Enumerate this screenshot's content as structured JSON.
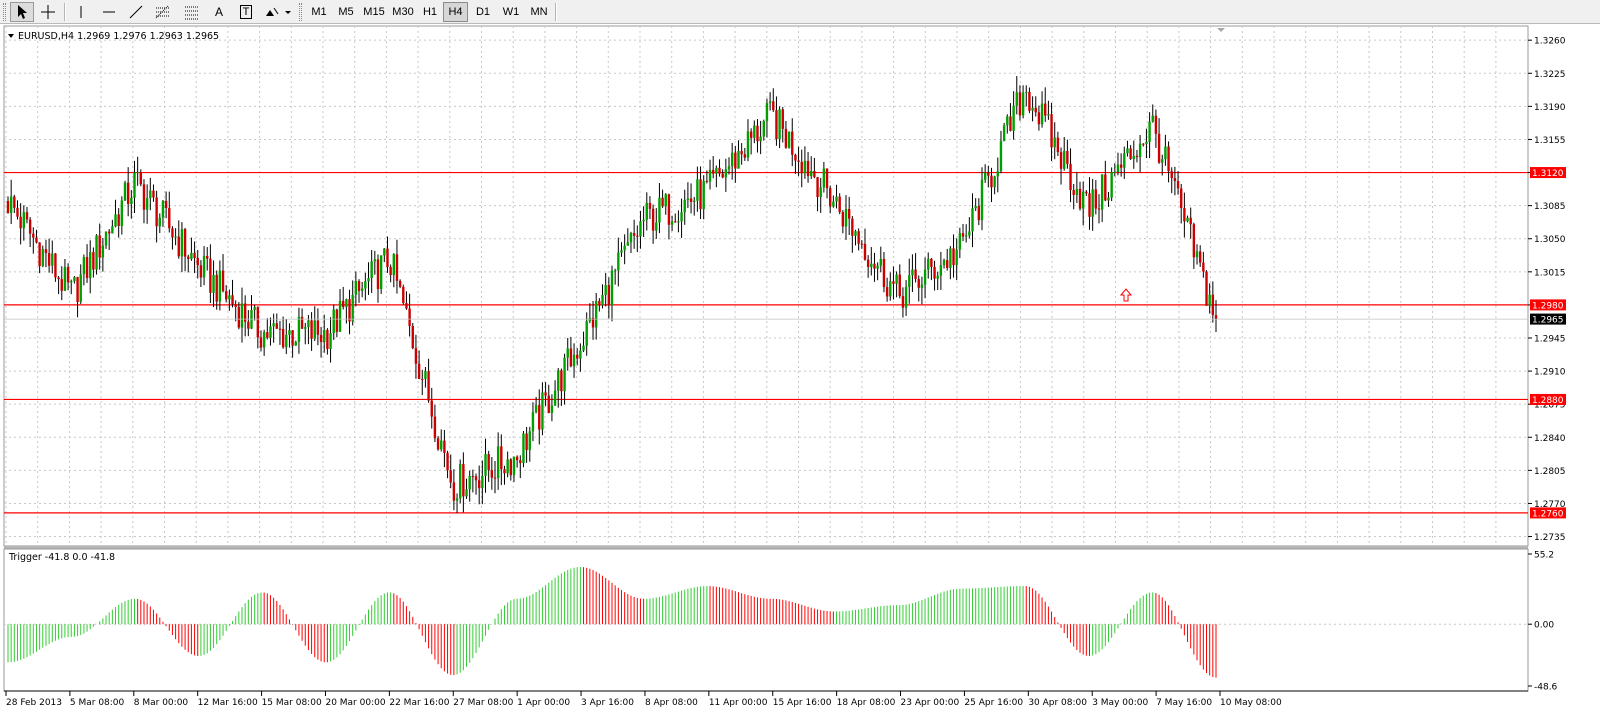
{
  "toolbar": {
    "tools": [
      "cursor-icon",
      "crosshair-icon",
      "vertical-line-icon",
      "horizontal-line-icon",
      "trendline-icon",
      "fibonacci-icon",
      "fibonacci-fan-icon",
      "text-icon",
      "text-label-icon",
      "arrows-icon"
    ],
    "text_tool_label": "A",
    "text_label_tool_label": "T",
    "periods": [
      "M1",
      "M5",
      "M15",
      "M30",
      "H1",
      "H4",
      "D1",
      "W1",
      "MN"
    ],
    "active_period": "H4"
  },
  "main_chart": {
    "header": "EURUSD,H4  1.2969 1.2976 1.2963 1.2965",
    "price_ticks": [
      "1.3260",
      "1.3225",
      "1.3190",
      "1.3155",
      "1.3120",
      "1.3085",
      "1.3050",
      "1.3015",
      "1.2980",
      "1.2945",
      "1.2910",
      "1.2875",
      "1.2840",
      "1.2805",
      "1.2770",
      "1.2735"
    ],
    "current_price": "1.2965",
    "horizontal_levels": [
      "1.3120",
      "1.2980",
      "1.2880",
      "1.2760"
    ],
    "colors": {
      "level_line": "#ff0000",
      "bull_candle": "#00a000",
      "bear_candle": "#cc0000",
      "wick": "#000000",
      "grid": "#c8c8c8",
      "price_tag_bg": "#ff0000",
      "current_tag_bg": "#000000"
    }
  },
  "indicator": {
    "header": "Trigger -41.8 0.0 -41.8",
    "ticks": [
      "55.2",
      "0.00",
      "-48.6"
    ],
    "colors": {
      "rising": "#32cd32",
      "falling": "#ff0000"
    }
  },
  "time_axis": [
    "28 Feb 2013",
    "5 Mar 08:00",
    "8 Mar 00:00",
    "12 Mar 16:00",
    "15 Mar 08:00",
    "20 Mar 00:00",
    "22 Mar 16:00",
    "27 Mar 08:00",
    "1 Apr 00:00",
    "3 Apr 16:00",
    "8 Apr 08:00",
    "11 Apr 00:00",
    "15 Apr 16:00",
    "18 Apr 08:00",
    "23 Apr 00:00",
    "25 Apr 16:00",
    "30 Apr 08:00",
    "3 May 00:00",
    "7 May 16:00",
    "10 May 08:00"
  ],
  "chart_data": {
    "type": "line",
    "symbol": "EURUSD",
    "timeframe": "H4",
    "x": [
      "28 Feb 2013",
      "5 Mar 08:00",
      "8 Mar 00:00",
      "12 Mar 16:00",
      "15 Mar 08:00",
      "20 Mar 00:00",
      "22 Mar 16:00",
      "27 Mar 08:00",
      "1 Apr 00:00",
      "3 Apr 16:00",
      "8 Apr 08:00",
      "11 Apr 00:00",
      "15 Apr 16:00",
      "18 Apr 08:00",
      "23 Apr 00:00",
      "25 Apr 16:00",
      "30 Apr 08:00",
      "3 May 00:00",
      "7 May 16:00",
      "10 May 08:00"
    ],
    "price_ylim": [
      1.2725,
      1.3275
    ],
    "series": [
      {
        "values": [
          1.309,
          1.299,
          1.311,
          1.302,
          1.295,
          1.295,
          1.303,
          1.279,
          1.282,
          1.294,
          1.307,
          1.31,
          1.318,
          1.309,
          1.299,
          1.304,
          1.321,
          1.308,
          1.317,
          1.2965
        ]
      }
    ],
    "indicator_ylim": [
      -48.6,
      55.2
    ],
    "indicator_values": [
      -30,
      -10,
      20,
      -25,
      25,
      -30,
      25,
      -40,
      20,
      45,
      20,
      30,
      20,
      10,
      15,
      28,
      30,
      -25,
      25,
      -42
    ]
  }
}
